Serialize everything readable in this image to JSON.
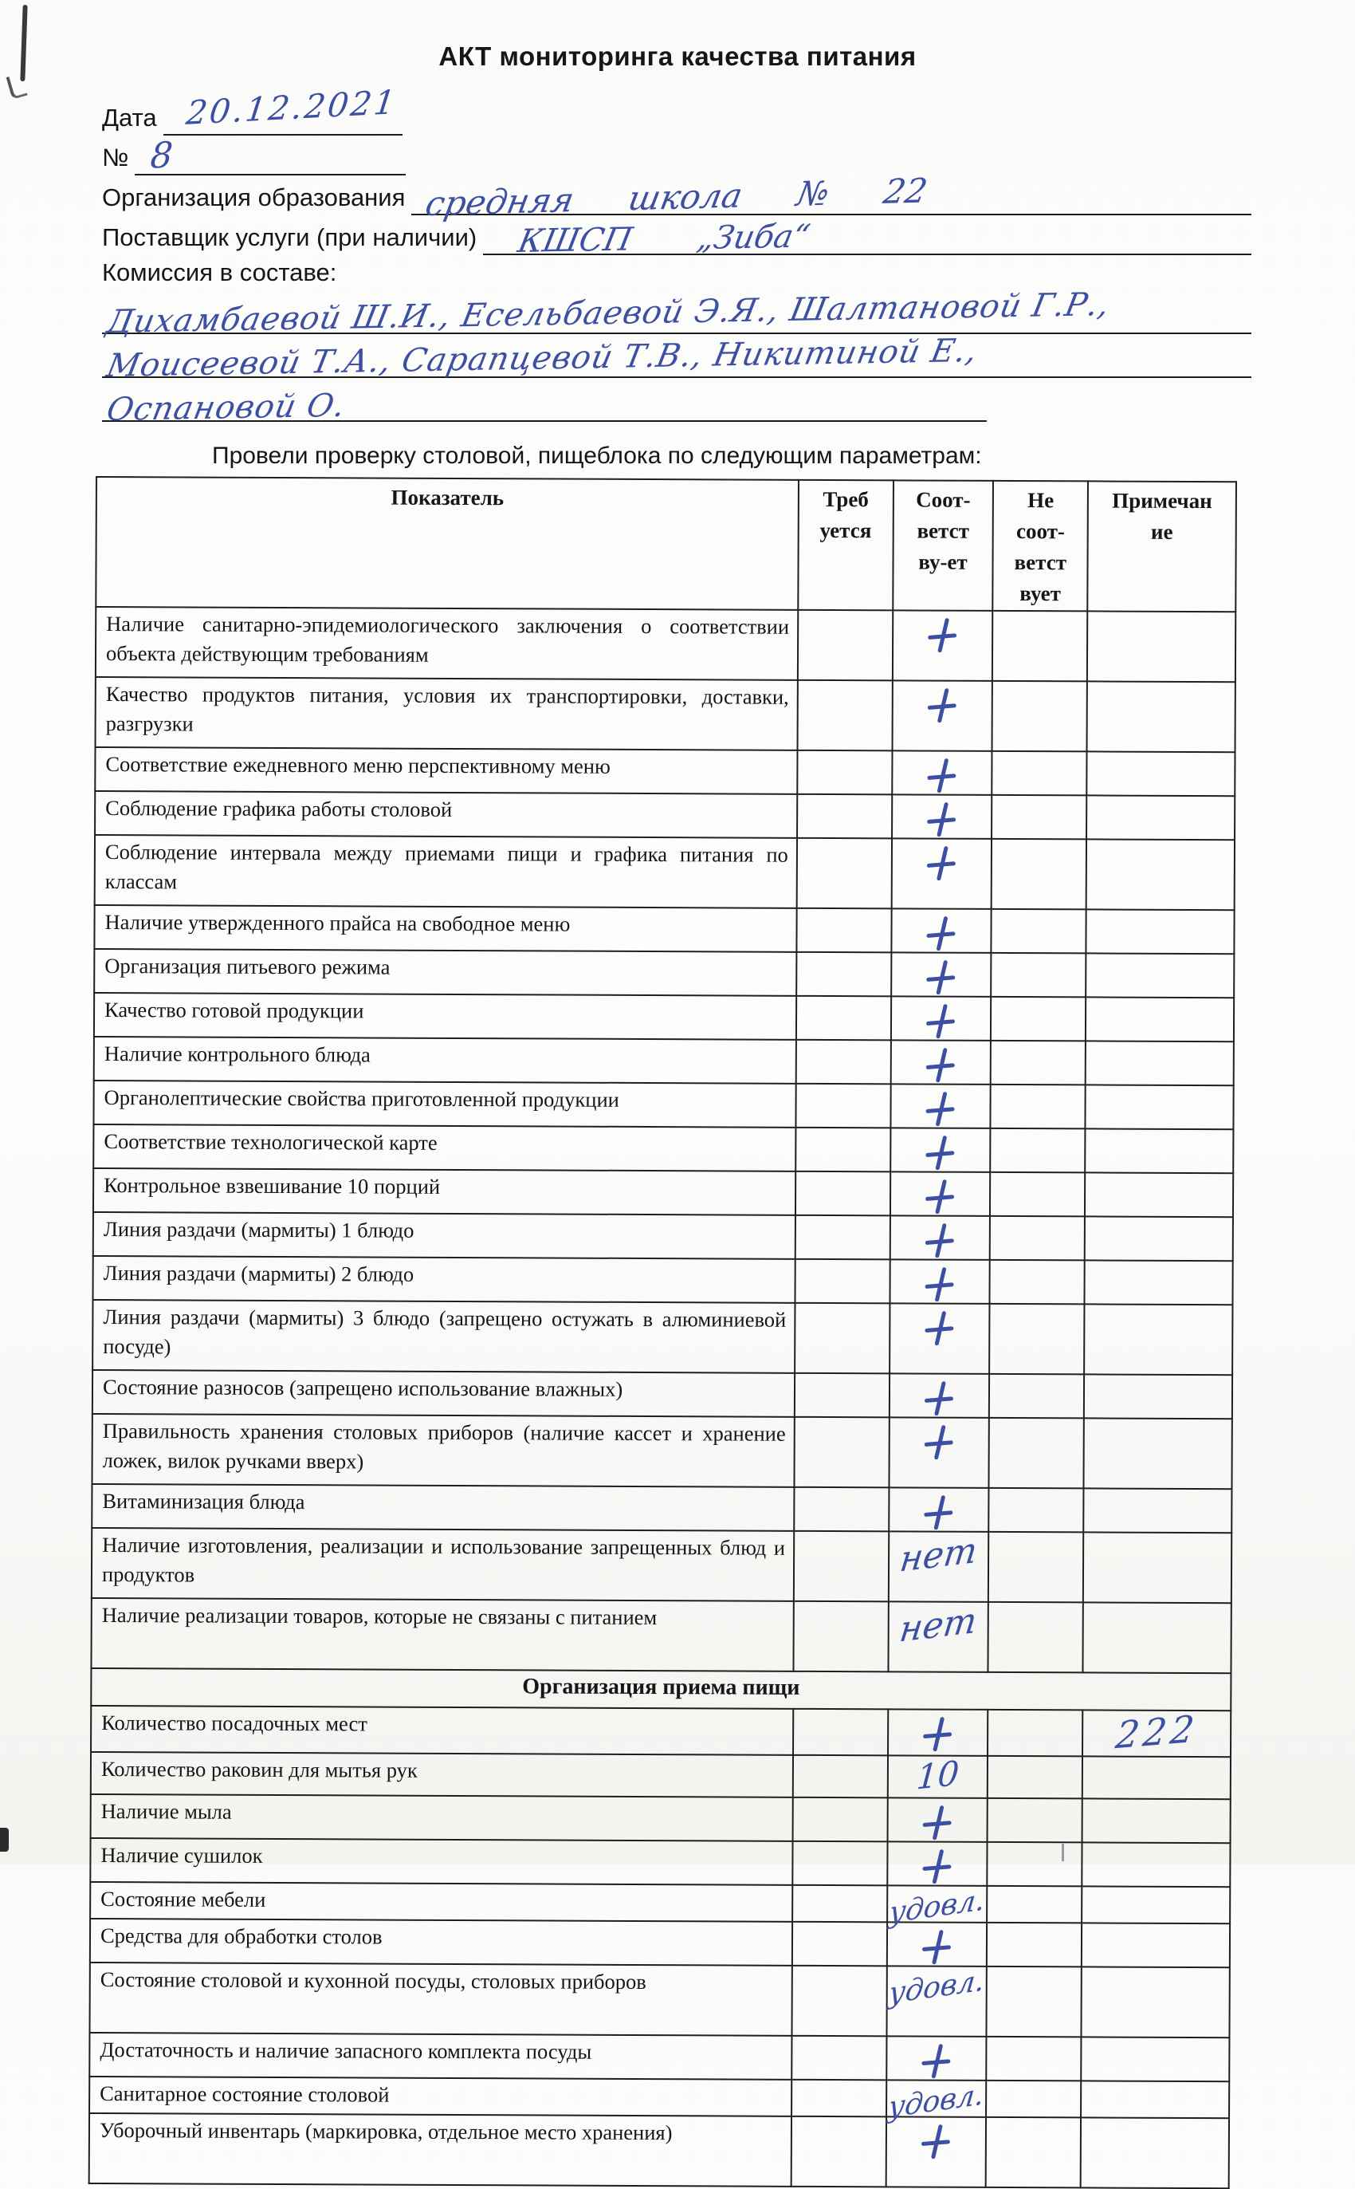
{
  "page": {
    "title": "АКТ мониторинга качества питания",
    "intro": "Провели проверку столовой, пищеблока по следующим параметрам:"
  },
  "form": {
    "date_label": "Дата",
    "date_value": "20.12.2021",
    "number_label": "№",
    "number_value": "8",
    "org_label": "Организация образования",
    "org_value": "средняя школа № 22",
    "supplier_label": "Поставщик услуги (при наличии)",
    "supplier_value": "КШСП „Зиба“",
    "commission_label": "Комиссия в составе:",
    "commission_lines": [
      "Дихамбаевой Ш.И., Есельбаевой Э.Я., Шалтановой Г.Р.,",
      "Моисеевой Т.А., Сарапцевой Т.В., Никитиной Е.,",
      "Оспановой О."
    ]
  },
  "colors": {
    "ink": "#3c4fa2",
    "paper": "#fbfbf9",
    "line": "#1f1f1f"
  },
  "table": {
    "headers": [
      [
        "Показатель"
      ],
      [
        "Треб",
        "уется"
      ],
      [
        "Соот-",
        "ветст",
        "ву-ет"
      ],
      [
        "Не",
        "соот-",
        "ветст",
        "вует"
      ],
      [
        "Примечан",
        "ие"
      ]
    ],
    "rows": [
      {
        "indicator": "Наличие санитарно-эпидемиологического заключения о соответствии объекта действующим требованиям",
        "check": "+",
        "note": "",
        "tall": true
      },
      {
        "indicator": "Качество продуктов питания, условия их транспортировки, доставки, разгрузки",
        "check": "+",
        "note": "",
        "tall": true
      },
      {
        "indicator": "Соответствие ежедневного меню перспективному меню",
        "check": "+",
        "note": "",
        "tall": false
      },
      {
        "indicator": "Соблюдение графика работы столовой",
        "check": "+",
        "note": "",
        "tall": false
      },
      {
        "indicator": "Соблюдение интервала между приемами пищи и графика питания по классам",
        "check": "+",
        "note": "",
        "tall": true
      },
      {
        "indicator": "Наличие утвержденного прайса на свободное меню",
        "check": "+",
        "note": "",
        "tall": false
      },
      {
        "indicator": "Организация питьевого режима",
        "check": "+",
        "note": "",
        "tall": false
      },
      {
        "indicator": "Качество готовой продукции",
        "check": "+",
        "note": "",
        "tall": false
      },
      {
        "indicator": "Наличие контрольного блюда",
        "check": "+",
        "note": "",
        "tall": false
      },
      {
        "indicator": "Органолептические свойства приготовленной продукции",
        "check": "+",
        "note": "",
        "tall": false
      },
      {
        "indicator": "Соответствие технологической карте",
        "check": "+",
        "note": "",
        "tall": false
      },
      {
        "indicator": "Контрольное взвешивание 10 порций",
        "check": "+",
        "note": "",
        "tall": false
      },
      {
        "indicator": "Линия раздачи (мармиты) 1 блюдо",
        "check": "+",
        "note": "",
        "tall": false
      },
      {
        "indicator": "Линия раздачи (мармиты)  2 блюдо",
        "check": "+",
        "note": "",
        "tall": false
      },
      {
        "indicator": "Линия раздачи (мармиты) 3 блюдо (запрещено остужать в алюминиевой посуде)",
        "check": "+",
        "note": "",
        "tall": true
      },
      {
        "indicator": "Состояние разносов (запрещено использование влажных)",
        "check": "+",
        "note": "",
        "tall": false
      },
      {
        "indicator": "Правильность хранения столовых приборов (наличие кассет и хранение ложек, вилок ручками вверх)",
        "check": "+",
        "note": "",
        "tall": true
      },
      {
        "indicator": "Витаминизация блюда",
        "check": "+",
        "note": "",
        "tall": false
      },
      {
        "indicator": "Наличие изготовления, реализации и использование запрещенных  блюд и продуктов",
        "check": "нет",
        "note": "",
        "tall": true
      },
      {
        "indicator": "Наличие реализации товаров, которые не связаны с питанием",
        "check": "нет",
        "note": "",
        "tall": true
      },
      {
        "section": "Организация приема пищи"
      },
      {
        "indicator": "Количество посадочных мест",
        "check": "+",
        "note": "222",
        "tall": false
      },
      {
        "indicator": "Количество раковин для мытья рук",
        "check": "10",
        "note": "",
        "tall": false
      },
      {
        "indicator": "Наличие мыла",
        "check": "+",
        "note": "",
        "tall": false
      },
      {
        "indicator": "Наличие сушилок",
        "check": "+",
        "note": "",
        "tall": false
      },
      {
        "indicator": "Состояние мебели",
        "check": "удовл.",
        "note": "",
        "tall": false
      },
      {
        "indicator": "Средства для обработки столов",
        "check": "+",
        "note": "",
        "tall": false
      },
      {
        "indicator": "Состояние столовой и кухонной посуды, столовых приборов",
        "check": "удовл.",
        "note": "",
        "tall": true
      },
      {
        "indicator": "Достаточность и наличие запасного комплекта посуды",
        "check": "+",
        "note": "",
        "tall": false
      },
      {
        "indicator": "Санитарное состояние столовой",
        "check": "удовл.",
        "note": "",
        "tall": false
      },
      {
        "indicator": "Уборочный инвентарь (маркировка, отдельное место хранения)",
        "check": "+",
        "note": "",
        "tall": true
      }
    ]
  }
}
